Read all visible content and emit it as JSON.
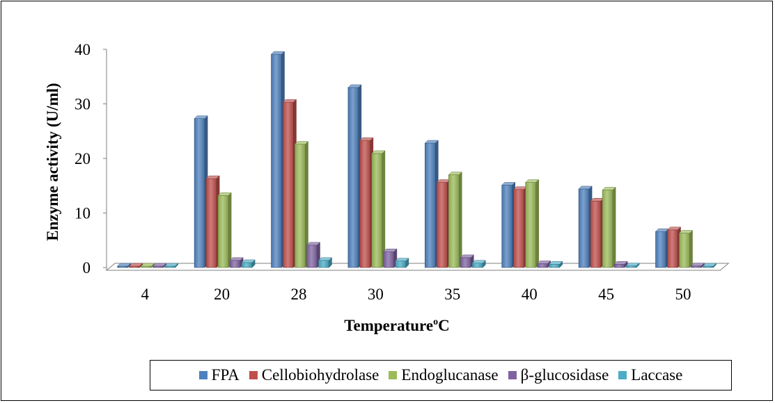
{
  "chart_data": {
    "type": "bar",
    "title": "",
    "xlabel": "Temperature",
    "xlabel_sup": "o",
    "xlabel_unit": "C",
    "ylabel": "Enzyme activity (U/ml)",
    "ylim": [
      0,
      40
    ],
    "yticks": [
      "0",
      "10",
      "20",
      "30",
      "40"
    ],
    "categories": [
      "4",
      "20",
      "28",
      "30",
      "35",
      "40",
      "45",
      "50"
    ],
    "series": [
      {
        "name": "FPA",
        "color": "#4F81BD",
        "values": [
          0,
          27.3,
          39.1,
          33.0,
          22.8,
          15.1,
          14.4,
          6.6
        ]
      },
      {
        "name": "Cellobiohydrolase",
        "color": "#C0504D",
        "values": [
          0,
          16.3,
          30.3,
          23.3,
          15.6,
          14.3,
          12.2,
          6.9
        ]
      },
      {
        "name": "Endoglucanase",
        "color": "#9BBB59",
        "values": [
          0,
          13.2,
          22.6,
          20.9,
          17.0,
          15.6,
          14.2,
          6.3
        ]
      },
      {
        "name": "β-glucosidase",
        "color": "#8064A2",
        "values": [
          0,
          1.3,
          4.1,
          2.9,
          1.8,
          0.7,
          0.6,
          0.3
        ]
      },
      {
        "name": "Laccase",
        "color": "#4BACC6",
        "values": [
          0,
          0.9,
          1.3,
          1.2,
          0.8,
          0.6,
          0.3,
          0.2
        ]
      }
    ],
    "grid": false,
    "legend_position": "bottom",
    "style": "3d-clustered-column"
  }
}
